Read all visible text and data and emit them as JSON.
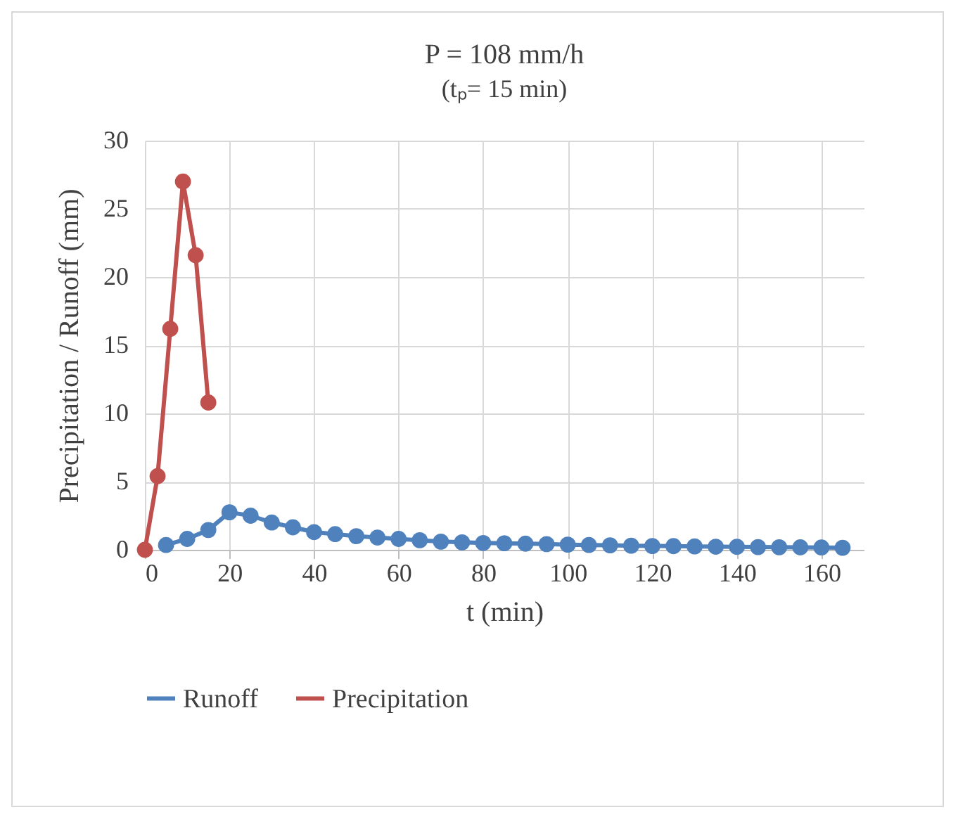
{
  "chart_data": {
    "type": "line",
    "title": "P = 108 mm/h",
    "subtitle": "(tₚ= 15 min)",
    "xlabel": "t (min)",
    "ylabel": "Precipitation / Runoff (mm)",
    "xlim": [
      0,
      170
    ],
    "xticks": [
      0,
      20,
      40,
      60,
      80,
      100,
      120,
      140,
      160
    ],
    "ylim": [
      0,
      30
    ],
    "yticks": [
      0,
      5,
      10,
      15,
      20,
      25,
      30
    ],
    "grid": true,
    "legend": "bottom",
    "marker": "circle",
    "line_style": "solid",
    "series": [
      {
        "name": "Runoff",
        "color": "#4f81bd",
        "x": [
          5,
          10,
          15,
          20,
          25,
          30,
          35,
          40,
          45,
          50,
          55,
          60,
          65,
          70,
          75,
          80,
          85,
          90,
          95,
          100,
          105,
          110,
          115,
          120,
          125,
          130,
          135,
          140,
          145,
          150,
          155,
          160,
          165
        ],
        "values": [
          0.35,
          0.8,
          1.45,
          2.75,
          2.5,
          2.0,
          1.65,
          1.3,
          1.15,
          1.0,
          0.9,
          0.8,
          0.7,
          0.6,
          0.55,
          0.5,
          0.48,
          0.45,
          0.42,
          0.38,
          0.35,
          0.33,
          0.3,
          0.28,
          0.27,
          0.25,
          0.23,
          0.22,
          0.2,
          0.19,
          0.18,
          0.17,
          0.15
        ]
      },
      {
        "name": "Precipitation",
        "color": "#c0504d",
        "x": [
          0,
          3,
          6,
          9,
          12,
          15
        ],
        "values": [
          0,
          5.4,
          16.2,
          27,
          21.6,
          10.8
        ]
      }
    ]
  }
}
